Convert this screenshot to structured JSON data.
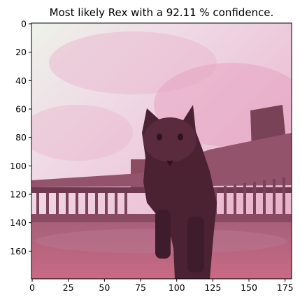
{
  "title": "Most likely Rex with a 92.11 % confidence.",
  "image": {
    "description_subject": "cat",
    "tint_color": "#c86a8a",
    "sky_color": "#f2e4ec"
  },
  "axes": {
    "x": {
      "min": 0,
      "max": 179,
      "ticks": [
        0,
        25,
        50,
        75,
        100,
        125,
        150,
        175
      ],
      "inverted": false
    },
    "y": {
      "min": 0,
      "max": 179,
      "ticks": [
        0,
        20,
        40,
        60,
        80,
        100,
        120,
        140,
        160
      ],
      "inverted": true
    }
  }
}
